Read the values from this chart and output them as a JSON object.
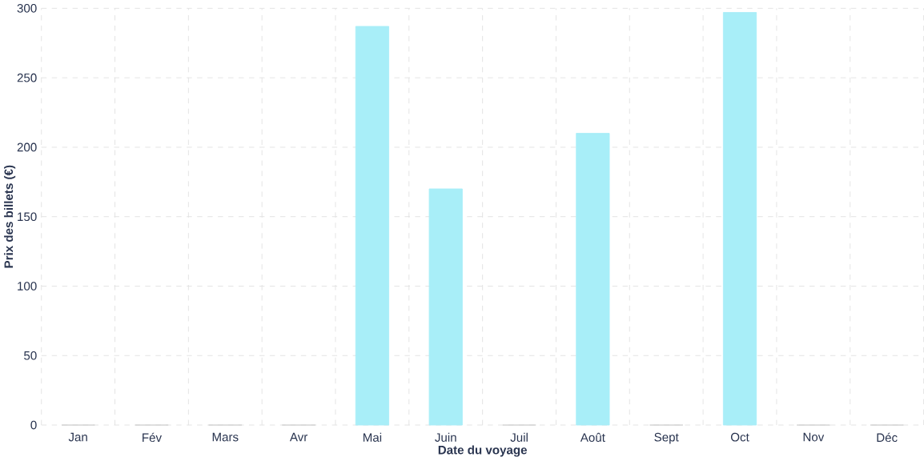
{
  "chart_data": {
    "type": "bar",
    "xlabel": "Date du voyage",
    "ylabel": "Prix des billets (€)",
    "categories": [
      "Jan",
      "Fév",
      "Mars",
      "Avr",
      "Mai",
      "Juin",
      "Juil",
      "Août",
      "Sept",
      "Oct",
      "Nov",
      "Déc"
    ],
    "values": [
      0,
      0,
      0,
      0,
      287,
      170,
      0,
      210,
      0,
      297,
      0,
      0
    ],
    "colors": [
      "#d0d0d0",
      "#d0d0d0",
      "#d0d0d0",
      "#d0d0d0",
      "#a8eef8",
      "#a8eef8",
      "#d0d0d0",
      "#a8eef8",
      "#d0d0d0",
      "#a8eef8",
      "#d0d0d0",
      "#d0d0d0"
    ],
    "ylim": [
      0,
      300
    ],
    "yticks": [
      0,
      50,
      100,
      150,
      200,
      250,
      300
    ],
    "grid": true
  }
}
